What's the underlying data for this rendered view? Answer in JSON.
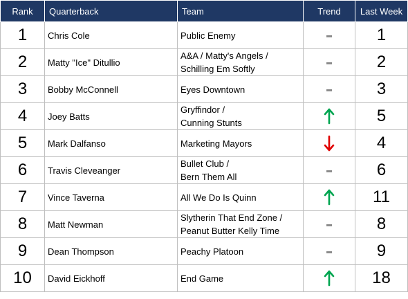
{
  "headers": {
    "rank": "Rank",
    "quarterback": "Quarterback",
    "team": "Team",
    "trend": "Trend",
    "last_week": "Last Week"
  },
  "colors": {
    "header_bg": "#1f3864",
    "up": "#00a550",
    "down": "#e00000",
    "flat": "#8c8c8c"
  },
  "rows": [
    {
      "rank": "1",
      "qb": "Chris Cole",
      "team_line1": "Public Enemy",
      "team_line2": "",
      "trend": "flat",
      "last_week": "1"
    },
    {
      "rank": "2",
      "qb": "Matty \"Ice\" Ditullio",
      "team_line1": "A&A / Matty's Angels /",
      "team_line2": "Schilling Em Softly",
      "trend": "flat",
      "last_week": "2"
    },
    {
      "rank": "3",
      "qb": "Bobby McConnell",
      "team_line1": "Eyes Downtown",
      "team_line2": "",
      "trend": "flat",
      "last_week": "3"
    },
    {
      "rank": "4",
      "qb": "Joey Batts",
      "team_line1": "Gryffindor /",
      "team_line2": "Cunning Stunts",
      "trend": "up",
      "last_week": "5"
    },
    {
      "rank": "5",
      "qb": "Mark Dalfanso",
      "team_line1": "Marketing Mayors",
      "team_line2": "",
      "trend": "down",
      "last_week": "4"
    },
    {
      "rank": "6",
      "qb": "Travis Cleveanger",
      "team_line1": "Bullet Club /",
      "team_line2": "Bern Them All",
      "trend": "flat",
      "last_week": "6"
    },
    {
      "rank": "7",
      "qb": "Vince Taverna",
      "team_line1": "All We Do Is Quinn",
      "team_line2": "",
      "trend": "up",
      "last_week": "11"
    },
    {
      "rank": "8",
      "qb": "Matt Newman",
      "team_line1": "Slytherin That End Zone /",
      "team_line2": "Peanut Butter Kelly Time",
      "trend": "flat",
      "last_week": "8"
    },
    {
      "rank": "9",
      "qb": "Dean Thompson",
      "team_line1": "Peachy Platoon",
      "team_line2": "",
      "trend": "flat",
      "last_week": "9"
    },
    {
      "rank": "10",
      "qb": "David Eickhoff",
      "team_line1": "End Game",
      "team_line2": "",
      "trend": "up",
      "last_week": "18"
    }
  ]
}
